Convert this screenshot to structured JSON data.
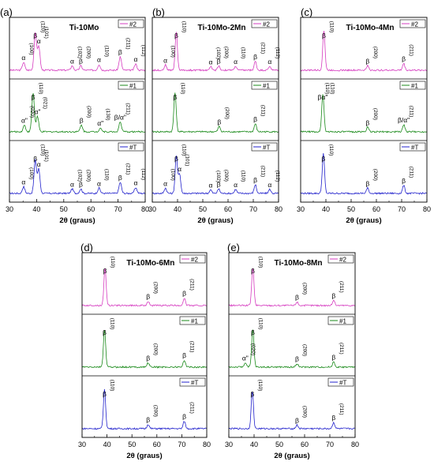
{
  "figure": {
    "trace_colors": {
      "#2": "#d63cc0",
      "#1": "#1a8a1a",
      "#T": "#2222cc"
    }
  },
  "chart_data": [
    {
      "panel": "(a)",
      "title": "Ti-10Mo",
      "type": "line",
      "xlabel": "2θ (graus)",
      "xlim": [
        30,
        80
      ],
      "xticks": [
        30,
        40,
        50,
        60,
        70,
        80
      ],
      "subplots": [
        {
          "legend": "#2",
          "peaks": [
            [
              35.2,
              0.18
            ],
            [
              39.5,
              0.85
            ],
            [
              40.8,
              0.55
            ],
            [
              53.1,
              0.1
            ],
            [
              56.3,
              0.1
            ],
            [
              63.0,
              0.13
            ],
            [
              70.8,
              0.3
            ],
            [
              76.5,
              0.14
            ]
          ],
          "labels": [
            [
              "α",
              "(100)",
              35.2
            ],
            [
              "β",
              "(110)",
              39.5
            ],
            [
              "α",
              "(101)",
              40.8
            ],
            [
              "α",
              "(102)",
              53.1
            ],
            [
              "β",
              "(200)",
              56.3
            ],
            [
              "α",
              "(110)",
              63.0
            ],
            [
              "β",
              "(211)",
              70.8
            ],
            [
              "α",
              "(112)",
              76.5
            ]
          ]
        },
        {
          "legend": "#1",
          "peaks": [
            [
              35.5,
              0.15
            ],
            [
              38.7,
              0.88
            ],
            [
              40.3,
              0.35
            ],
            [
              56.5,
              0.15
            ],
            [
              63.5,
              0.09
            ],
            [
              70.8,
              0.22
            ]
          ],
          "labels": [
            [
              "α\"",
              "(020)",
              35.5
            ],
            [
              "β",
              "(110)",
              38.7
            ],
            [
              "α\"",
              "(021)",
              40.3
            ],
            [
              "β",
              "(200)",
              56.5
            ],
            [
              "α\"",
              "(130)",
              63.5
            ],
            [
              "β/α\"",
              "(211)",
              70.8
            ]
          ]
        },
        {
          "legend": "#T",
          "peaks": [
            [
              35.2,
              0.15
            ],
            [
              39.5,
              0.75
            ],
            [
              40.8,
              0.55
            ],
            [
              53.1,
              0.1
            ],
            [
              56.3,
              0.1
            ],
            [
              63.0,
              0.12
            ],
            [
              70.8,
              0.25
            ],
            [
              76.5,
              0.13
            ]
          ],
          "labels": [
            [
              "α",
              "(100)",
              35.2
            ],
            [
              "β",
              "(110)",
              39.5
            ],
            [
              "α",
              "(101)",
              40.8
            ],
            [
              "α",
              "(102)",
              53.1
            ],
            [
              "β",
              "(200)",
              56.3
            ],
            [
              "α",
              "(110)",
              63.0
            ],
            [
              "β",
              "(211)",
              70.8
            ],
            [
              "α",
              "(112)",
              76.5
            ]
          ]
        }
      ]
    },
    {
      "panel": "(b)",
      "title": "Ti-10Mo-2Mn",
      "type": "line",
      "xlabel": "2θ (graus)",
      "xlim": [
        30,
        80
      ],
      "xticks": [
        30,
        40,
        50,
        60,
        70,
        80
      ],
      "subplots": [
        {
          "legend": "#2",
          "peaks": [
            [
              35.2,
              0.12
            ],
            [
              39.5,
              0.85
            ],
            [
              53.1,
              0.08
            ],
            [
              56.3,
              0.1
            ],
            [
              63.0,
              0.09
            ],
            [
              70.8,
              0.2
            ],
            [
              76.5,
              0.09
            ]
          ],
          "labels": [
            [
              "α",
              "(100)",
              35.2
            ],
            [
              "β",
              "(110)",
              39.5
            ],
            [
              "α",
              "(102)",
              53.1
            ],
            [
              "β",
              "(200)",
              56.3
            ],
            [
              "α",
              "(110)",
              63.0
            ],
            [
              "β",
              "(211)",
              70.8
            ],
            [
              "α",
              "(112)",
              76.5
            ]
          ]
        },
        {
          "legend": "#1",
          "peaks": [
            [
              39.0,
              0.9
            ],
            [
              56.5,
              0.12
            ],
            [
              70.8,
              0.18
            ]
          ],
          "labels": [
            [
              "β",
              "(110)",
              39.0
            ],
            [
              "β",
              "(200)",
              56.5
            ],
            [
              "β",
              "(211)",
              70.8
            ]
          ]
        },
        {
          "legend": "#T",
          "peaks": [
            [
              35.2,
              0.12
            ],
            [
              39.5,
              0.85
            ],
            [
              40.8,
              0.45
            ],
            [
              53.1,
              0.08
            ],
            [
              56.3,
              0.1
            ],
            [
              63.0,
              0.09
            ],
            [
              70.8,
              0.2
            ],
            [
              76.5,
              0.09
            ]
          ],
          "labels": [
            [
              "α",
              "(100)",
              35.2
            ],
            [
              "β",
              "(110)",
              39.5
            ],
            [
              "α",
              "(101)",
              40.8
            ],
            [
              "α",
              "(102)",
              53.1
            ],
            [
              "β",
              "(200)",
              56.3
            ],
            [
              "α",
              "(110)",
              63.0
            ],
            [
              "β",
              "(211)",
              70.8
            ],
            [
              "α",
              "(112)",
              76.5
            ]
          ]
        }
      ]
    },
    {
      "panel": "(c)",
      "title": "Ti-10Mo-4Mn",
      "type": "line",
      "xlabel": "2θ (graus)",
      "xlim": [
        30,
        80
      ],
      "xticks": [
        30,
        40,
        50,
        60,
        70,
        80
      ],
      "subplots": [
        {
          "legend": "#2",
          "peaks": [
            [
              39.2,
              0.9
            ],
            [
              56.5,
              0.1
            ],
            [
              70.8,
              0.15
            ]
          ],
          "labels": [
            [
              "β",
              "(110)",
              39.2
            ],
            [
              "β",
              "(200)",
              56.5
            ],
            [
              "β",
              "(211)",
              70.8
            ]
          ]
        },
        {
          "legend": "#1",
          "peaks": [
            [
              38.8,
              0.85
            ],
            [
              56.5,
              0.1
            ],
            [
              70.8,
              0.16
            ]
          ],
          "labels": [
            [
              "β",
              "(110)",
              37.5
            ],
            [
              "α\"",
              "(110)",
              39.5
            ],
            [
              "β",
              "(200)",
              56.5
            ],
            [
              "β/α\"",
              "(211)",
              70.8
            ]
          ]
        },
        {
          "legend": "#T",
          "peaks": [
            [
              39.0,
              0.9
            ],
            [
              56.5,
              0.12
            ],
            [
              70.8,
              0.18
            ]
          ],
          "labels": [
            [
              "β",
              "(110)",
              39.0
            ],
            [
              "β",
              "(200)",
              56.5
            ],
            [
              "β",
              "(211)",
              70.8
            ]
          ]
        }
      ]
    },
    {
      "panel": "(d)",
      "title": "Ti-10Mo-6Mn",
      "type": "line",
      "xlabel": "2θ (graus)",
      "xlim": [
        30,
        80
      ],
      "xticks": [
        30,
        40,
        50,
        60,
        70,
        80
      ],
      "subplots": [
        {
          "legend": "#2",
          "peaks": [
            [
              39.2,
              0.85
            ],
            [
              56.5,
              0.1
            ],
            [
              71.0,
              0.17
            ]
          ],
          "labels": [
            [
              "β",
              "(110)",
              39.2
            ],
            [
              "β",
              "(200)",
              56.5
            ],
            [
              "β",
              "(211)",
              71.0
            ]
          ]
        },
        {
          "legend": "#1",
          "peaks": [
            [
              39.0,
              0.85
            ],
            [
              56.5,
              0.1
            ],
            [
              71.0,
              0.16
            ]
          ],
          "labels": [
            [
              "β",
              "(110)",
              39.0
            ],
            [
              "β",
              "(200)",
              56.5
            ],
            [
              "β",
              "(211)",
              71.0
            ]
          ]
        },
        {
          "legend": "#T",
          "peaks": [
            [
              39.0,
              0.9
            ],
            [
              56.5,
              0.1
            ],
            [
              71.0,
              0.17
            ]
          ],
          "labels": [
            [
              "β",
              "(110)",
              39.0
            ],
            [
              "β",
              "(200)",
              56.5
            ],
            [
              "β",
              "(211)",
              71.0
            ]
          ]
        }
      ]
    },
    {
      "panel": "(e)",
      "title": "Ti-10Mo-8Mn",
      "type": "line",
      "xlabel": "2θ (graus)",
      "xlim": [
        30,
        80
      ],
      "xticks": [
        30,
        40,
        50,
        60,
        70,
        80
      ],
      "subplots": [
        {
          "legend": "#2",
          "peaks": [
            [
              39.5,
              0.85
            ],
            [
              57.0,
              0.08
            ],
            [
              71.5,
              0.12
            ]
          ],
          "labels": [
            [
              "β",
              "(110)",
              39.5
            ],
            [
              "β",
              "(200)",
              57.0
            ],
            [
              "β",
              "(211)",
              71.5
            ]
          ]
        },
        {
          "legend": "#1",
          "peaks": [
            [
              36.5,
              0.1
            ],
            [
              39.5,
              0.85
            ],
            [
              57.0,
              0.08
            ],
            [
              71.5,
              0.12
            ]
          ],
          "labels": [
            [
              "α\"",
              "(020)",
              36.5
            ],
            [
              "β",
              "(110)",
              39.5
            ],
            [
              "β",
              "(200)",
              57.0
            ],
            [
              "β",
              "(211)",
              71.5
            ]
          ]
        },
        {
          "legend": "#T",
          "peaks": [
            [
              39.3,
              0.85
            ],
            [
              57.0,
              0.08
            ],
            [
              71.5,
              0.14
            ]
          ],
          "labels": [
            [
              "β",
              "(110)",
              39.3
            ],
            [
              "β",
              "(200)",
              57.0
            ],
            [
              "β",
              "(211)",
              71.5
            ]
          ]
        }
      ]
    }
  ]
}
